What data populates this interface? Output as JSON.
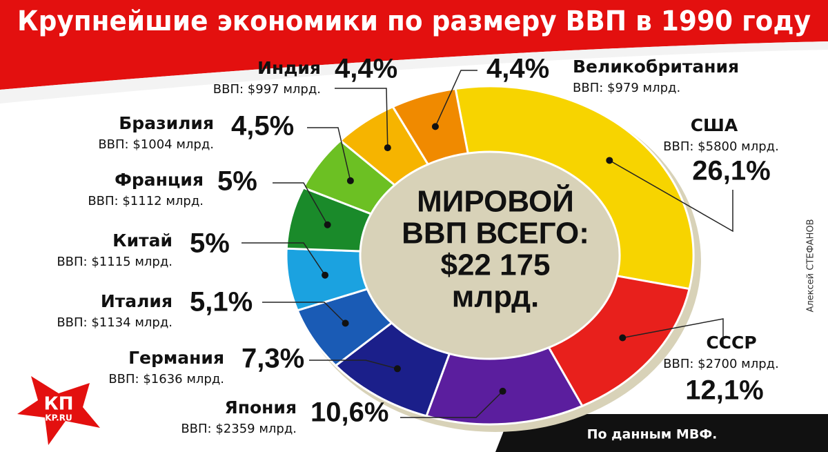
{
  "chart_data": {
    "type": "donut",
    "title": "Крупнейшие экономики по размеру ВВП в 1990 году",
    "center_text": [
      "МИРОВОЙ",
      "ВВП ВСЕГО:",
      "$22 175",
      "млрд."
    ],
    "categories": [
      "США",
      "СССР",
      "Япония",
      "Германия",
      "Италия",
      "Китай",
      "Франция",
      "Бразилия",
      "Индия",
      "Великобритания"
    ],
    "values": [
      26.1,
      12.1,
      10.6,
      7.3,
      5.1,
      5,
      5,
      4.5,
      4.4,
      4.4
    ],
    "value_labels": [
      "26,1%",
      "12,1%",
      "10,6%",
      "7,3%",
      "5,1%",
      "5%",
      "5%",
      "4,5%",
      "4,4%",
      "4,4%"
    ],
    "gdp_labels": [
      "ВВП: $5800 млрд.",
      "ВВП: $2700 млрд.",
      "ВВП: $2359 млрд.",
      "ВВП: $1636 млрд.",
      "ВВП: $1134 млрд.",
      "ВВП: $1115 млрд.",
      "ВВП: $1112 млрд.",
      "ВВП: $1004 млрд.",
      "ВВП: $997 млрд.",
      "ВВП: $979 млрд."
    ],
    "colors": [
      "#f7d400",
      "#e8201c",
      "#5b1e9e",
      "#1b1f8a",
      "#1a5bb5",
      "#1ba2e0",
      "#1a8a2a",
      "#6cc023",
      "#f6b400",
      "#f08a00"
    ],
    "author": "Алексей СТЕФАНОВ",
    "source": "По данным МВФ.",
    "logo": [
      "КП",
      "KP.RU"
    ]
  }
}
